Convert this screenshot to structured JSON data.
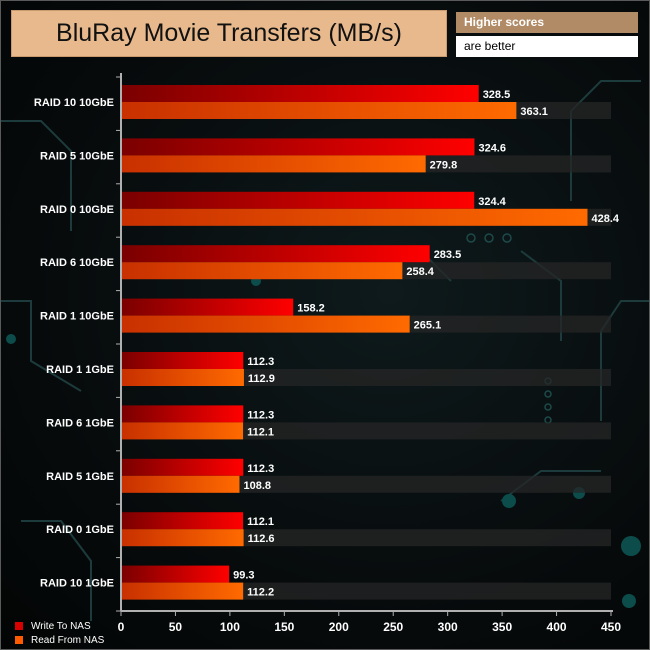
{
  "notes": {
    "line1": "Higher scores",
    "line2": "are better"
  },
  "colors": {
    "title_bg": "#e8b98d",
    "write_bar": "#e00000",
    "read_bar": "#ff6000",
    "axis": "#b0b0b0"
  },
  "chart_data": {
    "type": "bar",
    "orientation": "horizontal",
    "title": "BluRay Movie Transfers (MB/s)",
    "categories": [
      "RAID 10 10GbE",
      "RAID 5 10GbE",
      "RAID 0 10GbE",
      "RAID 6 10GbE",
      "RAID 1 10GbE",
      "RAID 1 1GbE",
      "RAID 6 1GbE",
      "RAID 5 1GbE",
      "RAID 0 1GbE",
      "RAID 10 1GbE"
    ],
    "series": [
      {
        "name": "Write To NAS",
        "values": [
          328.5,
          324.6,
          324.4,
          283.5,
          158.2,
          112.3,
          112.3,
          112.3,
          112.1,
          99.3
        ]
      },
      {
        "name": "Read From NAS",
        "values": [
          363.1,
          279.8,
          428.4,
          258.4,
          265.1,
          112.9,
          112.1,
          108.8,
          112.6,
          112.2
        ]
      }
    ],
    "xlim": [
      0,
      450
    ],
    "xticks": [
      0,
      50,
      100,
      150,
      200,
      250,
      300,
      350,
      400,
      450
    ],
    "grid": false,
    "legend": "bottom-left"
  }
}
